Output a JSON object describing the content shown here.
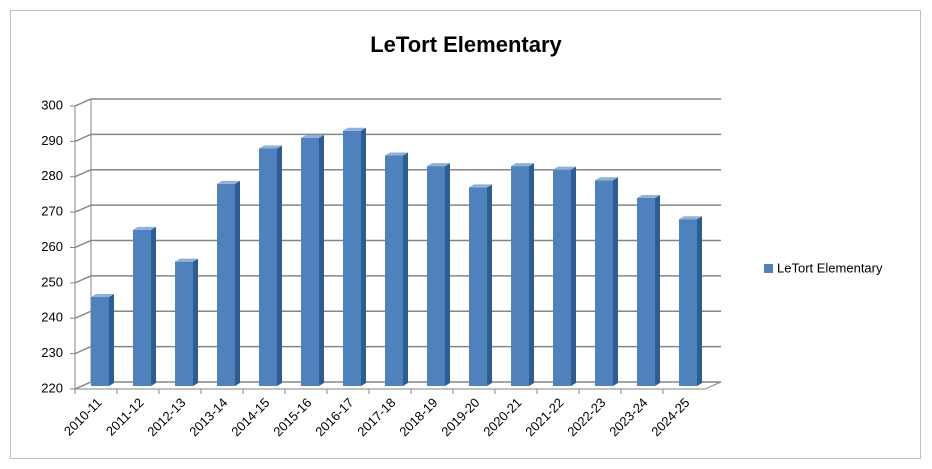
{
  "chart_data": {
    "type": "bar",
    "title": "LeTort Elementary",
    "categories": [
      "2010-11",
      "2011-12",
      "2012-13",
      "2013-14",
      "2014-15",
      "2015-16",
      "2016-17",
      "2017-18",
      "2018-19",
      "2019-20",
      "2020-21",
      "2021-22",
      "2022-23",
      "2023-24",
      "2024-25"
    ],
    "series": [
      {
        "name": "LeTort Elementary",
        "color": "#4f81bd",
        "values": [
          246,
          265,
          256,
          278,
          288,
          291,
          293,
          286,
          283,
          277,
          283,
          282,
          279,
          274,
          268
        ]
      }
    ],
    "ylim": [
      220,
      300
    ],
    "yticks": [
      220,
      230,
      240,
      250,
      260,
      270,
      280,
      290,
      300
    ],
    "grid": true,
    "legend": "right"
  }
}
